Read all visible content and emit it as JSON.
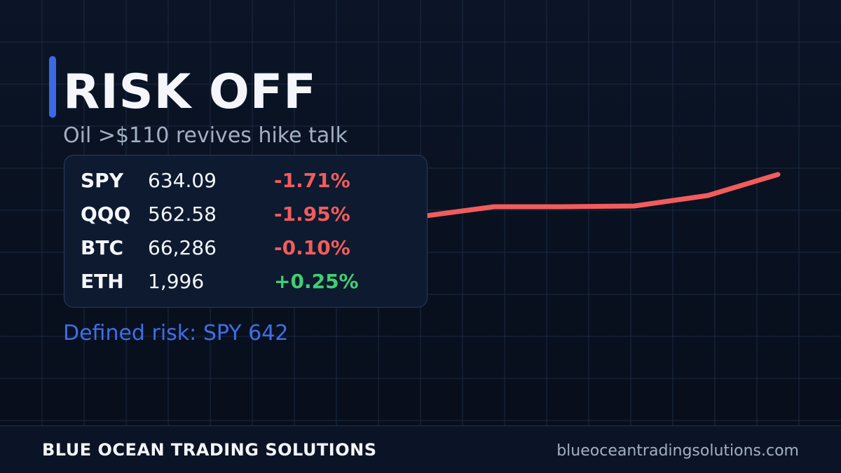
{
  "header": {
    "title": "RISK OFF",
    "subtitle": "Oil >$110 revives hike talk"
  },
  "table": {
    "rows": [
      [
        "SPY",
        "634.09",
        "-1.71%"
      ],
      [
        "QQQ",
        "562.58",
        "-1.95%"
      ],
      [
        "BTC",
        "66,286",
        "-0.10%"
      ],
      [
        "ETH",
        "1,996",
        "+0.25%"
      ]
    ]
  },
  "note": "Defined risk: SPY 642",
  "footer": {
    "brand": "BLUE OCEAN TRADING SOLUTIONS",
    "url": "blueoceantradingsolutions.com"
  }
}
